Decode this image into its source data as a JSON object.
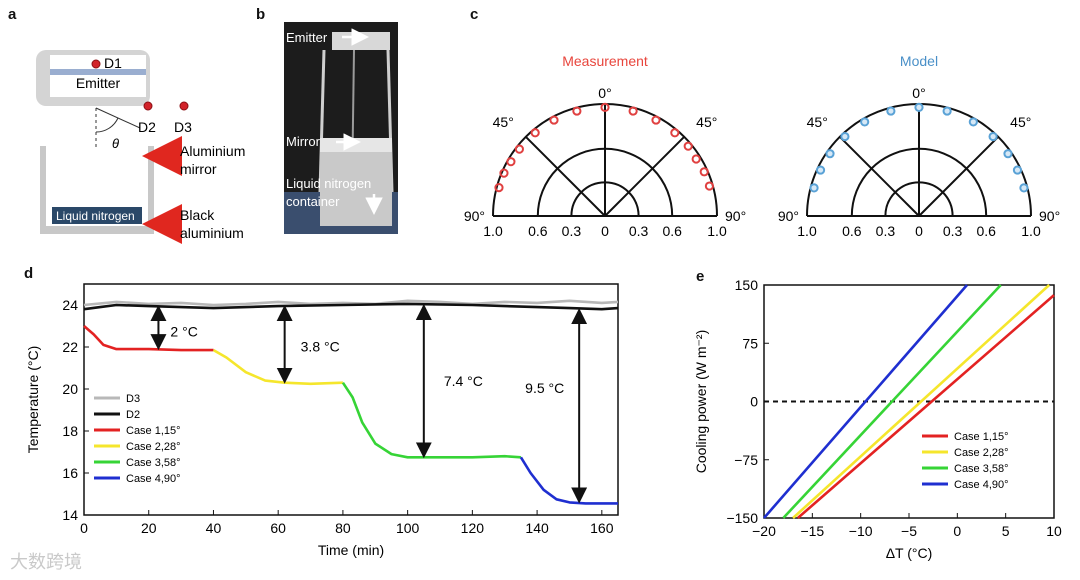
{
  "panel_labels": {
    "a": "a",
    "b": "b",
    "c": "c",
    "d": "d",
    "e": "e"
  },
  "panel_a": {
    "emitter": "Emitter",
    "d1": "D1",
    "d2": "D2",
    "d3": "D3",
    "theta": "θ",
    "mirror_l1": "Aluminium",
    "mirror_l2": "mirror",
    "ln2": "Liquid nitrogen",
    "black_l1": "Black",
    "black_l2": "aluminium",
    "colors": {
      "arrow": "#e0271f",
      "ln2_box": "#2a4868",
      "detector": "#d2232a"
    }
  },
  "panel_b": {
    "emitter": "Emitter",
    "mirror": "Mirror",
    "ln2_l1": "Liquid nitrogen",
    "ln2_l2": "container"
  },
  "chart_data": [
    {
      "type": "polar",
      "title": "Measurement",
      "title_color": "#e8453c",
      "marker_color": "#e04040",
      "angle_labels": {
        "top": "0°",
        "upper_left": "45°",
        "upper_right": "45°",
        "left": "90°",
        "right": "90°"
      },
      "radial_ticks": [
        "1.0",
        "0.6",
        "0.3",
        "0",
        "0.3",
        "0.6",
        "1.0"
      ],
      "rings": [
        0.3,
        0.6,
        1.0
      ],
      "points": [
        {
          "angle_deg": -75,
          "r": 0.98
        },
        {
          "angle_deg": -67,
          "r": 0.98
        },
        {
          "angle_deg": -60,
          "r": 0.97
        },
        {
          "angle_deg": -52,
          "r": 0.97
        },
        {
          "angle_deg": -40,
          "r": 0.97
        },
        {
          "angle_deg": -28,
          "r": 0.97
        },
        {
          "angle_deg": -15,
          "r": 0.97
        },
        {
          "angle_deg": 0,
          "r": 0.97
        },
        {
          "angle_deg": 15,
          "r": 0.97
        },
        {
          "angle_deg": 28,
          "r": 0.97
        },
        {
          "angle_deg": 40,
          "r": 0.97
        },
        {
          "angle_deg": 50,
          "r": 0.97
        },
        {
          "angle_deg": 58,
          "r": 0.96
        },
        {
          "angle_deg": 66,
          "r": 0.97
        },
        {
          "angle_deg": 74,
          "r": 0.97
        }
      ]
    },
    {
      "type": "polar",
      "title": "Model",
      "title_color": "#4a90c8",
      "marker_color": "#5aa2d6",
      "angle_labels": {
        "top": "0°",
        "upper_left": "45°",
        "upper_right": "45°",
        "left": "90°",
        "right": "90°"
      },
      "radial_ticks": [
        "1.0",
        "0.6",
        "0.3",
        "0",
        "0.3",
        "0.6",
        "1.0"
      ],
      "rings": [
        0.3,
        0.6,
        1.0
      ],
      "points": [
        {
          "angle_deg": -75,
          "r": 0.97
        },
        {
          "angle_deg": -65,
          "r": 0.97
        },
        {
          "angle_deg": -55,
          "r": 0.97
        },
        {
          "angle_deg": -43,
          "r": 0.97
        },
        {
          "angle_deg": -30,
          "r": 0.97
        },
        {
          "angle_deg": -15,
          "r": 0.97
        },
        {
          "angle_deg": 0,
          "r": 0.97
        },
        {
          "angle_deg": 15,
          "r": 0.97
        },
        {
          "angle_deg": 30,
          "r": 0.97
        },
        {
          "angle_deg": 43,
          "r": 0.97
        },
        {
          "angle_deg": 55,
          "r": 0.97
        },
        {
          "angle_deg": 65,
          "r": 0.97
        },
        {
          "angle_deg": 75,
          "r": 0.97
        }
      ]
    },
    {
      "type": "line",
      "xlabel": "Time (min)",
      "ylabel": "Temperature (°C)",
      "xlim": [
        0,
        165
      ],
      "ylim": [
        14,
        25
      ],
      "xticks": [
        0,
        20,
        40,
        60,
        80,
        100,
        120,
        140,
        160
      ],
      "yticks": [
        14,
        16,
        18,
        20,
        22,
        24
      ],
      "series": [
        {
          "name": "D3",
          "color": "#b8b8b8",
          "points": [
            [
              0,
              24
            ],
            [
              10,
              24.15
            ],
            [
              20,
              24.05
            ],
            [
              30,
              24.1
            ],
            [
              40,
              24
            ],
            [
              50,
              24.05
            ],
            [
              60,
              24.15
            ],
            [
              70,
              24.05
            ],
            [
              80,
              24.1
            ],
            [
              90,
              24.05
            ],
            [
              100,
              24.2
            ],
            [
              110,
              24.15
            ],
            [
              120,
              24.05
            ],
            [
              130,
              24.15
            ],
            [
              140,
              24.1
            ],
            [
              150,
              24.2
            ],
            [
              160,
              24.1
            ],
            [
              165,
              24.15
            ]
          ]
        },
        {
          "name": "D2",
          "color": "#111111",
          "points": [
            [
              0,
              23.8
            ],
            [
              5,
              23.9
            ],
            [
              10,
              24
            ],
            [
              20,
              23.95
            ],
            [
              30,
              23.9
            ],
            [
              40,
              23.85
            ],
            [
              60,
              23.95
            ],
            [
              80,
              24
            ],
            [
              100,
              24.05
            ],
            [
              120,
              24
            ],
            [
              140,
              23.9
            ],
            [
              150,
              23.85
            ],
            [
              160,
              23.8
            ],
            [
              165,
              23.85
            ]
          ]
        },
        {
          "name": "Case 1,15°",
          "color": "#e32222",
          "points": [
            [
              0,
              23
            ],
            [
              3,
              22.6
            ],
            [
              6,
              22.1
            ],
            [
              10,
              21.9
            ],
            [
              20,
              21.9
            ],
            [
              30,
              21.85
            ],
            [
              40,
              21.85
            ]
          ]
        },
        {
          "name": "Case 2,28°",
          "color": "#f5e62c",
          "points": [
            [
              40,
              21.85
            ],
            [
              44,
              21.5
            ],
            [
              50,
              20.8
            ],
            [
              56,
              20.4
            ],
            [
              62,
              20.3
            ],
            [
              70,
              20.25
            ],
            [
              80,
              20.3
            ]
          ]
        },
        {
          "name": "Case 3,58°",
          "color": "#36d436",
          "points": [
            [
              80,
              20.3
            ],
            [
              83,
              19.6
            ],
            [
              86,
              18.4
            ],
            [
              90,
              17.4
            ],
            [
              95,
              16.9
            ],
            [
              100,
              16.75
            ],
            [
              110,
              16.75
            ],
            [
              120,
              16.75
            ],
            [
              130,
              16.8
            ],
            [
              135,
              16.75
            ]
          ]
        },
        {
          "name": "Case 4,90°",
          "color": "#1f2fd0",
          "points": [
            [
              135,
              16.75
            ],
            [
              138,
              16
            ],
            [
              142,
              15.2
            ],
            [
              146,
              14.75
            ],
            [
              150,
              14.6
            ],
            [
              155,
              14.55
            ],
            [
              160,
              14.55
            ],
            [
              165,
              14.55
            ]
          ]
        }
      ],
      "annotations": [
        {
          "text": "2 °C",
          "x": 23,
          "y_top": 24,
          "y_bottom": 21.85
        },
        {
          "text": "3.8 °C",
          "x": 62,
          "y_top": 24,
          "y_bottom": 20.25
        },
        {
          "text": "7.4 °C",
          "x": 105,
          "y_top": 24.05,
          "y_bottom": 16.7
        },
        {
          "text": "9.5 °C",
          "x": 153,
          "y_top": 23.85,
          "y_bottom": 14.55
        }
      ]
    },
    {
      "type": "line",
      "xlabel": "ΔT (°C)",
      "ylabel": "Cooling power (W m⁻²)",
      "xlim": [
        -20,
        10
      ],
      "ylim": [
        -150,
        150
      ],
      "xticks": [
        -20,
        -15,
        -10,
        -5,
        0,
        5,
        10
      ],
      "yticks": [
        -150,
        -75,
        0,
        75,
        150
      ],
      "zero_line": true,
      "series": [
        {
          "name": "Case 1,15°",
          "color": "#e32222",
          "points": [
            [
              -16.5,
              -150
            ],
            [
              10,
              137
            ]
          ]
        },
        {
          "name": "Case 2,28°",
          "color": "#f5e62c",
          "points": [
            [
              -17,
              -150
            ],
            [
              9.5,
              150
            ]
          ]
        },
        {
          "name": "Case 3,58°",
          "color": "#36d436",
          "points": [
            [
              -18,
              -150
            ],
            [
              4.5,
              150
            ]
          ]
        },
        {
          "name": "Case 4,90°",
          "color": "#1f2fd0",
          "points": [
            [
              -20,
              -150
            ],
            [
              1,
              150
            ]
          ]
        }
      ]
    }
  ],
  "watermark": "大数跨境"
}
